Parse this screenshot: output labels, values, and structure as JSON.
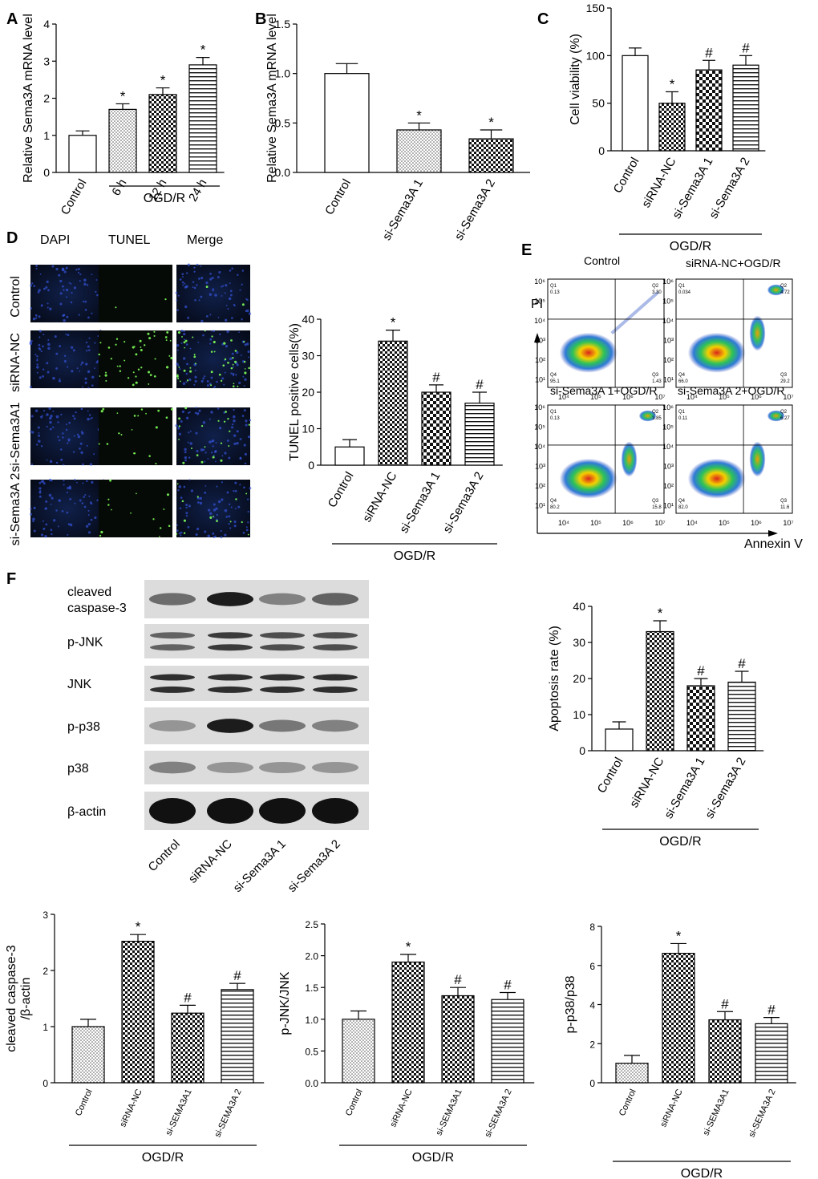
{
  "panels": {
    "A": {
      "label": "A"
    },
    "B": {
      "label": "B"
    },
    "C": {
      "label": "C"
    },
    "D": {
      "label": "D",
      "col_labels": [
        "DAPI",
        "TUNEL",
        "Merge"
      ],
      "row_labels": [
        "Control",
        "siRNA-NC",
        "si-Sema3A1",
        "si-Sema3A 2"
      ]
    },
    "E": {
      "label": "E",
      "quadrants": [
        {
          "title": "Control",
          "q1": "0.13",
          "q2": "3.30",
          "q3": "1.43",
          "q4": "95.1"
        },
        {
          "title": "siRNA-NC+OGD/R",
          "q1": "0.034",
          "q2": "4.72",
          "q3": "29.2",
          "q4": "66.0"
        },
        {
          "title": "si-Sema3A 1+OGD/R",
          "q1": "0.13",
          "q2": "3.85",
          "q3": "15.8",
          "q4": "80.2"
        },
        {
          "title": "si-Sema3A 2+OGD/R",
          "q1": "0.11",
          "q2": "6.27",
          "q3": "11.6",
          "q4": "82.0"
        }
      ],
      "qnames": [
        "Q1",
        "Q2",
        "Q3",
        "Q4"
      ],
      "xlabel": "Annexin V",
      "ylabel": "PI",
      "xticks": [
        "10⁴",
        "10⁵",
        "10⁶",
        "10⁷"
      ],
      "yticks": [
        "10⁶",
        "10⁵",
        "10⁴",
        "10³",
        "10²",
        "10¹"
      ]
    },
    "F": {
      "label": "F",
      "blot_labels": [
        "cleaved\ncaspase-3",
        "p-JNK",
        "JNK",
        "p-p38",
        "p38",
        "β-actin"
      ],
      "blot_lanes": [
        "Control",
        "siRNA-NC",
        "si-Sema3A 1",
        "si-Sema3A 2"
      ]
    }
  },
  "chart_data": [
    {
      "id": "A",
      "type": "bar",
      "ylabel": "Relative Sema3A mRNA level",
      "categories": [
        "Control",
        "6 h",
        "12 h",
        "24 h"
      ],
      "values": [
        1.0,
        1.7,
        2.1,
        2.9
      ],
      "errors": [
        0.12,
        0.15,
        0.18,
        0.2
      ],
      "marks": [
        "",
        "*",
        "*",
        "*"
      ],
      "ylim": [
        0,
        4
      ],
      "yticks": [
        "0",
        "1",
        "2",
        "3",
        "4"
      ],
      "group_label": "OGD/R",
      "group_span": [
        1,
        3
      ],
      "patterns": [
        "white",
        "dots",
        "check",
        "hlines"
      ]
    },
    {
      "id": "B",
      "type": "bar",
      "ylabel": "Relative Sema3A mRNA level",
      "categories": [
        "Control",
        "si-Sema3A 1",
        "si-Sema3A 2"
      ],
      "values": [
        1.0,
        0.43,
        0.34
      ],
      "errors": [
        0.1,
        0.07,
        0.09
      ],
      "marks": [
        "",
        "*",
        "*"
      ],
      "ylim": [
        0,
        1.5
      ],
      "yticks": [
        "0.0",
        "0.5",
        "1.0",
        "1.5"
      ],
      "patterns": [
        "white",
        "dots",
        "check"
      ]
    },
    {
      "id": "C",
      "type": "bar",
      "ylabel": "Cell viability (%)",
      "categories": [
        "Control",
        "siRNA-NC",
        "si-Sema3A 1",
        "si-Sema3A 2"
      ],
      "values": [
        100,
        50,
        85,
        90
      ],
      "errors": [
        8,
        12,
        10,
        10
      ],
      "marks": [
        "",
        "*",
        "#",
        "#"
      ],
      "ylim": [
        0,
        150
      ],
      "yticks": [
        "0",
        "50",
        "100",
        "150"
      ],
      "group_label": "OGD/R",
      "group_span": [
        0,
        3
      ],
      "patterns": [
        "white",
        "check",
        "checkBig",
        "hlines"
      ]
    },
    {
      "id": "D",
      "type": "bar",
      "ylabel": "TUNEL positive cells(%)",
      "categories": [
        "Control",
        "siRNA-NC",
        "si-Sema3A 1",
        "si-Sema3A 2"
      ],
      "values": [
        5,
        34,
        20,
        17
      ],
      "errors": [
        2,
        3,
        2,
        3
      ],
      "marks": [
        "",
        "*",
        "#",
        "#"
      ],
      "ylim": [
        0,
        40
      ],
      "yticks": [
        "0",
        "10",
        "20",
        "30",
        "40"
      ],
      "group_label": "OGD/R",
      "group_span": [
        0,
        3
      ],
      "patterns": [
        "white",
        "check",
        "checkBig",
        "hlines"
      ]
    },
    {
      "id": "E",
      "type": "bar",
      "ylabel": "Apoptosis rate (%)",
      "categories": [
        "Control",
        "siRNA-NC",
        "si-Sema3A 1",
        "si-Sema3A 2"
      ],
      "values": [
        6,
        33,
        18,
        19
      ],
      "errors": [
        2,
        3,
        2,
        3
      ],
      "marks": [
        "",
        "*",
        "#",
        "#"
      ],
      "ylim": [
        0,
        40
      ],
      "yticks": [
        "0",
        "10",
        "20",
        "30",
        "40"
      ],
      "group_label": "OGD/R",
      "group_span": [
        0,
        3
      ],
      "patterns": [
        "white",
        "check",
        "checkBig",
        "hlines"
      ]
    },
    {
      "id": "F1",
      "type": "bar",
      "ylabel": "cleaved caspase-3\n/β-actin",
      "categories": [
        "Control",
        "siRNA-NC",
        "si-SEMA3A1",
        "si-SEMA3A 2"
      ],
      "values": [
        1.0,
        2.52,
        1.24,
        1.66
      ],
      "errors": [
        0.13,
        0.12,
        0.14,
        0.11
      ],
      "marks": [
        "",
        "*",
        "#",
        "#"
      ],
      "ylim": [
        0,
        3
      ],
      "yticks": [
        "0",
        "1",
        "2",
        "3"
      ],
      "group_label": "OGD/R",
      "group_span": [
        0,
        3
      ],
      "patterns": [
        "dots",
        "check",
        "check",
        "hlines"
      ]
    },
    {
      "id": "F2",
      "type": "bar",
      "ylabel": "p-JNK/JNK",
      "categories": [
        "Control",
        "siRNA-NC",
        "si-SEMA3A1",
        "si-SEMA3A 2"
      ],
      "values": [
        1.0,
        1.9,
        1.37,
        1.31
      ],
      "errors": [
        0.13,
        0.12,
        0.13,
        0.11
      ],
      "marks": [
        "",
        "*",
        "#",
        "#"
      ],
      "ylim": [
        0,
        2.5
      ],
      "yticks": [
        "0.0",
        "0.5",
        "1.0",
        "1.5",
        "2.0",
        "2.5"
      ],
      "group_label": "OGD/R",
      "group_span": [
        0,
        3
      ],
      "patterns": [
        "dots",
        "check",
        "check",
        "hlines"
      ]
    },
    {
      "id": "F3",
      "type": "bar",
      "ylabel": "p-p38/p38",
      "categories": [
        "Control",
        "siRNA-NC",
        "si-SEMA3A1",
        "si-SEMA3A 2"
      ],
      "values": [
        1.0,
        6.62,
        3.22,
        3.02
      ],
      "errors": [
        0.4,
        0.5,
        0.42,
        0.32
      ],
      "marks": [
        "",
        "*",
        "#",
        "#"
      ],
      "ylim": [
        0,
        8
      ],
      "yticks": [
        "0",
        "2",
        "4",
        "6",
        "8"
      ],
      "group_label": "OGD/R",
      "group_span": [
        0,
        3
      ],
      "patterns": [
        "dots",
        "check",
        "check",
        "hlines"
      ]
    }
  ]
}
